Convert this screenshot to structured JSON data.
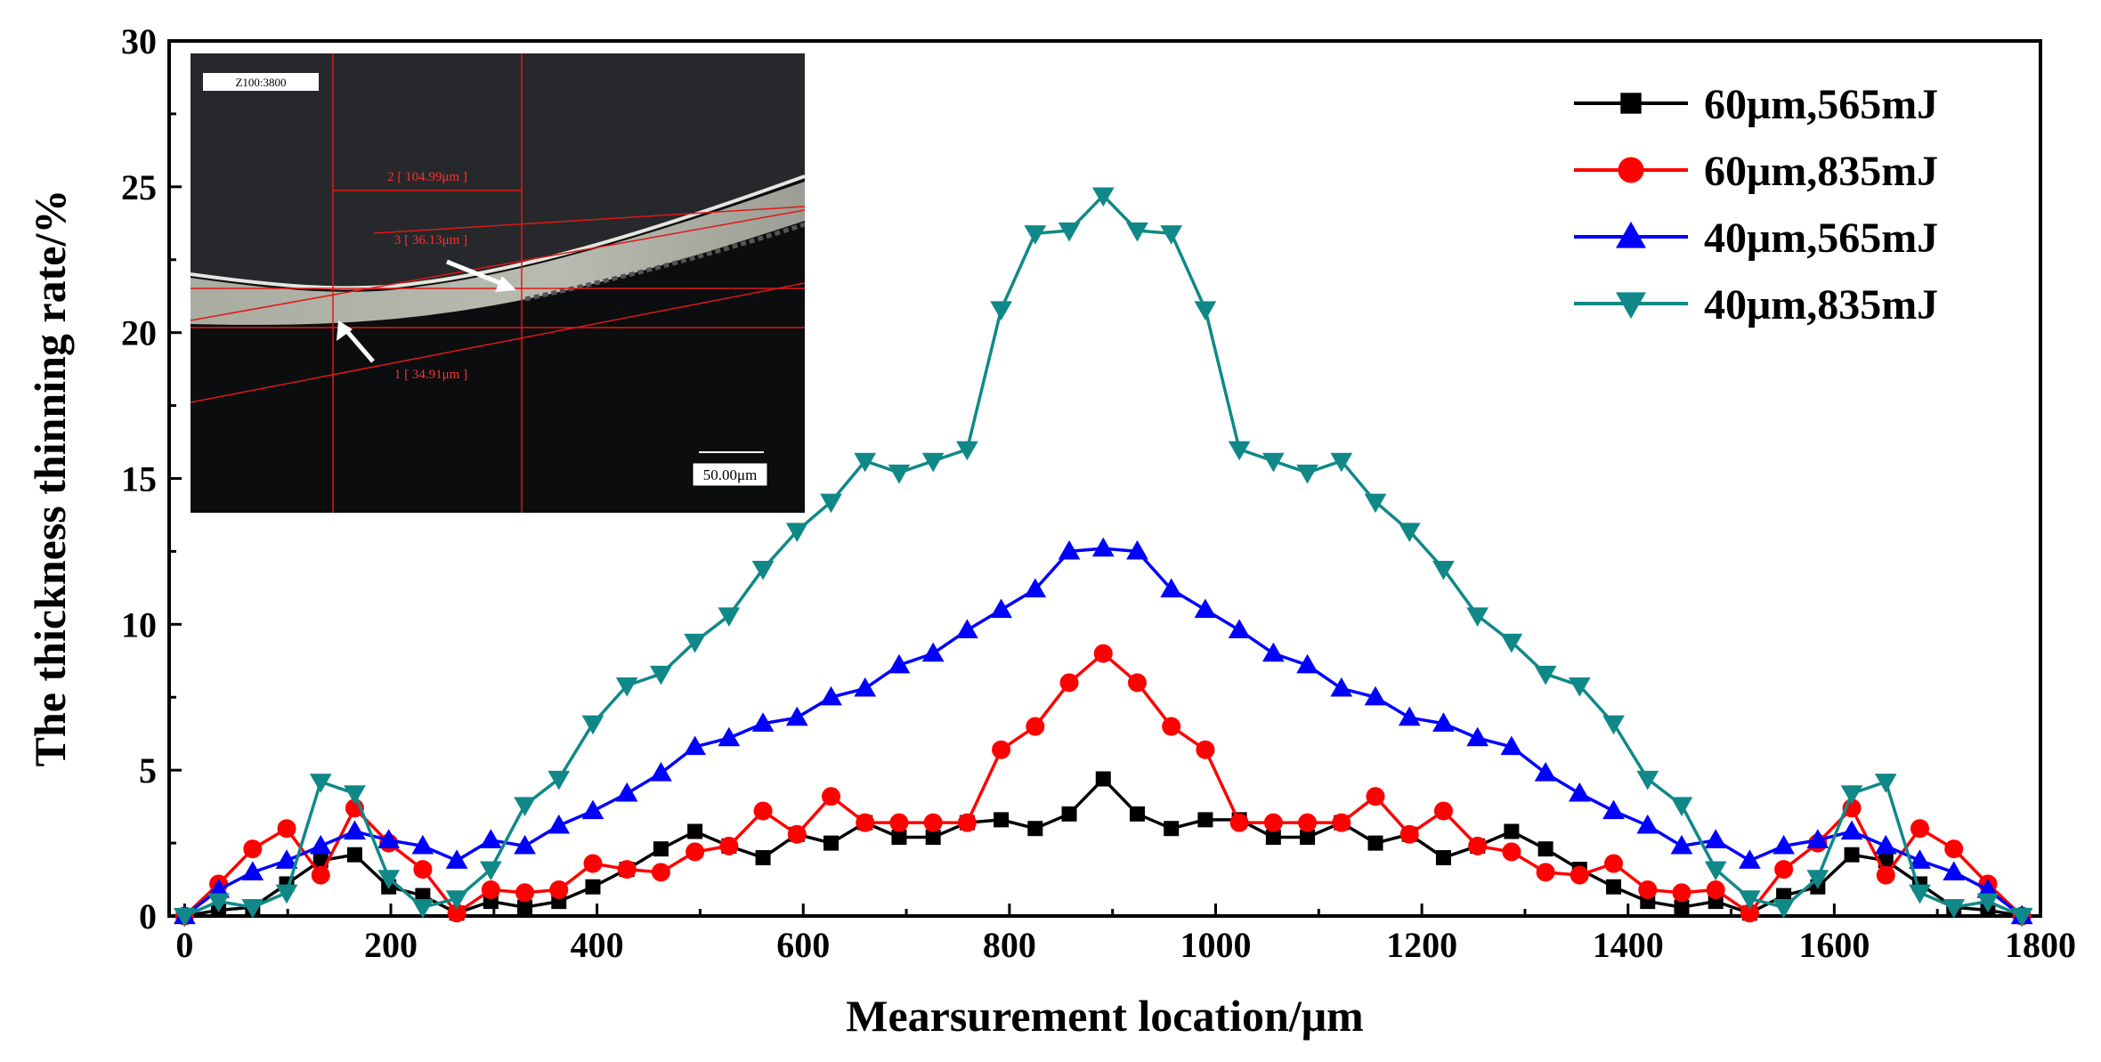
{
  "chart_data": {
    "type": "line",
    "title": "",
    "xlabel": "Mearsurement location/μm",
    "ylabel": "The thickness thinning rate/%",
    "xlim": [
      -15,
      1800
    ],
    "ylim": [
      0,
      30
    ],
    "xticks": [
      "0",
      "200",
      "400",
      "600",
      "800",
      "1000",
      "1200",
      "1400",
      "1600",
      "1800"
    ],
    "yticks": [
      "0",
      "5",
      "10",
      "15",
      "20",
      "25",
      "30"
    ],
    "grid": false,
    "legend_position": "top-right",
    "x": [
      0,
      33,
      66,
      99,
      132,
      165,
      198,
      231,
      264,
      297,
      330,
      363,
      396,
      429,
      462,
      495,
      528,
      561,
      594,
      627,
      660,
      693,
      726,
      759,
      792,
      825,
      858,
      891,
      924,
      957,
      990,
      1023,
      1056,
      1089,
      1122,
      1155,
      1188,
      1221,
      1254,
      1287,
      1320,
      1353,
      1386,
      1419,
      1452,
      1485,
      1518,
      1551,
      1584,
      1617,
      1650,
      1683,
      1716,
      1749,
      1782
    ],
    "series": [
      {
        "name": "60μm,565mJ",
        "color": "#000000",
        "marker": "square",
        "values": [
          0,
          0.2,
          0.3,
          1.1,
          1.9,
          2.1,
          1.0,
          0.7,
          0.1,
          0.5,
          0.3,
          0.5,
          1.0,
          1.6,
          2.3,
          2.9,
          2.4,
          2.0,
          2.8,
          2.5,
          3.2,
          2.7,
          2.7,
          3.2,
          3.3,
          3.0,
          3.5,
          4.7,
          3.5,
          3.0,
          3.3,
          3.3,
          2.7,
          2.7,
          3.2,
          2.5,
          2.8,
          2.0,
          2.4,
          2.9,
          2.3,
          1.6,
          1.0,
          0.5,
          0.3,
          0.5,
          0.1,
          0.7,
          1.0,
          2.1,
          1.9,
          1.1,
          0.3,
          0.2,
          0
        ]
      },
      {
        "name": "60μm,835mJ",
        "color": "#ff0000",
        "marker": "circle",
        "values": [
          0,
          1.1,
          2.3,
          3.0,
          1.4,
          3.7,
          2.5,
          1.6,
          0.1,
          0.9,
          0.8,
          0.9,
          1.8,
          1.6,
          1.5,
          2.2,
          2.4,
          3.6,
          2.8,
          4.1,
          3.2,
          3.2,
          3.2,
          3.2,
          5.7,
          6.5,
          8.0,
          9.0,
          8.0,
          6.5,
          5.7,
          3.2,
          3.2,
          3.2,
          3.2,
          4.1,
          2.8,
          3.6,
          2.4,
          2.2,
          1.5,
          1.4,
          1.8,
          0.9,
          0.8,
          0.9,
          0.1,
          1.6,
          2.5,
          3.7,
          1.4,
          3.0,
          2.3,
          1.1,
          0
        ]
      },
      {
        "name": "40μm,565mJ",
        "color": "#0000ff",
        "marker": "triangle-up",
        "values": [
          0,
          0.9,
          1.5,
          1.9,
          2.4,
          2.9,
          2.6,
          2.4,
          1.9,
          2.6,
          2.4,
          3.1,
          3.6,
          4.2,
          4.9,
          5.8,
          6.1,
          6.6,
          6.8,
          7.5,
          7.8,
          8.6,
          9.0,
          9.8,
          10.5,
          11.2,
          12.5,
          12.6,
          12.5,
          11.2,
          10.5,
          9.8,
          9.0,
          8.6,
          7.8,
          7.5,
          6.8,
          6.6,
          6.1,
          5.8,
          4.9,
          4.2,
          3.6,
          3.1,
          2.4,
          2.6,
          1.9,
          2.4,
          2.6,
          2.9,
          2.4,
          1.9,
          1.5,
          0.9,
          0
        ]
      },
      {
        "name": "40μm,835mJ",
        "color": "#108888",
        "marker": "triangle-down",
        "values": [
          0,
          0.5,
          0.3,
          0.8,
          4.6,
          4.2,
          1.3,
          0.3,
          0.6,
          1.6,
          3.8,
          4.7,
          6.6,
          7.9,
          8.3,
          9.4,
          10.3,
          11.9,
          13.2,
          14.2,
          15.6,
          15.2,
          15.6,
          16.0,
          20.8,
          23.4,
          23.5,
          24.7,
          23.5,
          23.4,
          20.8,
          16.0,
          15.6,
          15.2,
          15.6,
          14.2,
          13.2,
          11.9,
          10.3,
          9.4,
          8.3,
          7.9,
          6.6,
          4.7,
          3.8,
          1.6,
          0.6,
          0.3,
          1.3,
          4.2,
          4.6,
          0.8,
          0.3,
          0.5,
          0
        ]
      }
    ],
    "inset": {
      "description": "micrograph",
      "header_label": "Z100:3800",
      "measure_labels": [
        "2 [ 104.99μm ]",
        "3 [ 36.13μm ]",
        "1 [ 34.91μm ]"
      ],
      "scale_bar": "50.00μm"
    }
  }
}
